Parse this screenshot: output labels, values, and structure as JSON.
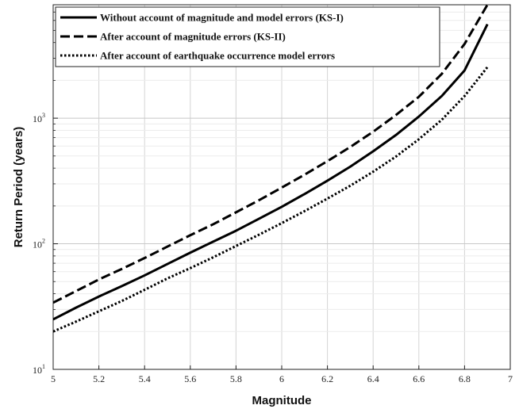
{
  "chart_data": {
    "type": "line",
    "title": "",
    "xlabel": "Magnitude",
    "ylabel": "Return Period (years)",
    "xlim": [
      5,
      7
    ],
    "ylim": [
      10,
      8000
    ],
    "yscale": "log",
    "grid": true,
    "legend_position": "top-left",
    "x_ticks": [
      "5",
      "5.2",
      "5.4",
      "5.6",
      "5.8",
      "6",
      "6.2",
      "6.4",
      "6.6",
      "6.8",
      "7"
    ],
    "y_ticks": [
      {
        "base": "10",
        "exp": "1",
        "value": 10
      },
      {
        "base": "10",
        "exp": "2",
        "value": 100
      },
      {
        "base": "10",
        "exp": "3",
        "value": 1000
      }
    ],
    "series": [
      {
        "name": "Without account of magnitude and model errors (KS-I)",
        "style": "solid",
        "color": "#000000",
        "x": [
          5.0,
          5.1,
          5.2,
          5.3,
          5.4,
          5.5,
          5.6,
          5.7,
          5.8,
          5.9,
          6.0,
          6.1,
          6.2,
          6.3,
          6.4,
          6.5,
          6.6,
          6.7,
          6.8,
          6.9
        ],
        "y": [
          25,
          31,
          38,
          46,
          56,
          69,
          85,
          104,
          127,
          158,
          197,
          249,
          318,
          411,
          545,
          735,
          1030,
          1500,
          2400,
          5600
        ]
      },
      {
        "name": "After account of magnitude errors (KS-II)",
        "style": "dashed",
        "color": "#000000",
        "x": [
          5.0,
          5.1,
          5.2,
          5.3,
          5.4,
          5.5,
          5.6,
          5.7,
          5.8,
          5.9,
          6.0,
          6.1,
          6.2,
          6.3,
          6.4,
          6.5,
          6.6,
          6.7,
          6.8,
          6.9
        ],
        "y": [
          34,
          42,
          52,
          63,
          77,
          95,
          117,
          143,
          178,
          222,
          280,
          355,
          455,
          590,
          780,
          1060,
          1480,
          2250,
          3900,
          8000
        ]
      },
      {
        "name": "After account of earthquake occurrence model errors",
        "style": "dotted",
        "color": "#000000",
        "x": [
          5.0,
          5.1,
          5.2,
          5.3,
          5.4,
          5.5,
          5.6,
          5.7,
          5.8,
          5.9,
          6.0,
          6.1,
          6.2,
          6.3,
          6.4,
          6.5,
          6.6,
          6.7,
          6.8,
          6.9
        ],
        "y": [
          20,
          24,
          29,
          35,
          43,
          53,
          64,
          78,
          96,
          118,
          146,
          182,
          229,
          290,
          375,
          495,
          680,
          970,
          1500,
          2550
        ]
      }
    ]
  }
}
